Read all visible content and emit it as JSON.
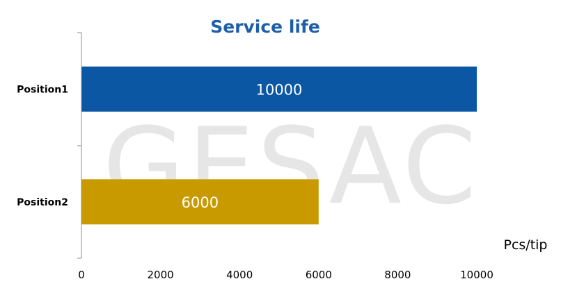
{
  "watermark": "GESAC",
  "chart_data": {
    "type": "bar",
    "orientation": "horizontal",
    "title": "Service life",
    "unit_label": "Pcs/tip",
    "categories": [
      "Position1",
      "Position2"
    ],
    "values": [
      10000,
      6000
    ],
    "value_labels": [
      "10000",
      "6000"
    ],
    "colors": [
      "#0b57a4",
      "#c99a00"
    ],
    "xlim": [
      0,
      10000
    ],
    "x_ticks": [
      0,
      2000,
      4000,
      6000,
      8000,
      10000
    ],
    "x_tick_labels": [
      "0",
      "2000",
      "4000",
      "6000",
      "8000",
      "10000"
    ],
    "grid": false,
    "legend": "none"
  }
}
